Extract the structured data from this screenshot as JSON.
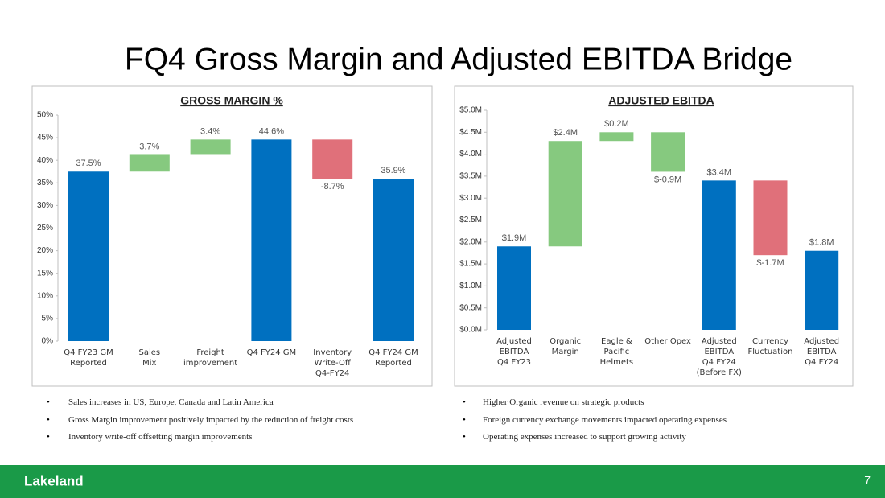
{
  "title": "FQ4 Gross Margin and Adjusted EBITDA Bridge",
  "chart_data": [
    {
      "type": "waterfall",
      "title": "GROSS MARGIN %",
      "categories": [
        "Q4 FY23 GM\nReported",
        "Sales\nMix",
        "Freight\nimprovement",
        "Q4 FY24 GM",
        "Inventory\nWrite-Off\nQ4-FY24",
        "Q4 FY24 GM\nReported"
      ],
      "values": [
        37.5,
        3.7,
        3.4,
        44.6,
        -8.7,
        35.9
      ],
      "value_labels": [
        "37.5%",
        "3.7%",
        "3.4%",
        "44.6%",
        "-8.7%",
        "35.9%"
      ],
      "totals": [
        true,
        false,
        false,
        true,
        false,
        true
      ],
      "colors": [
        "#0070c0",
        "#86c97f",
        "#86c97f",
        "#0070c0",
        "#e0707a",
        "#0070c0"
      ],
      "ylim": [
        0,
        50
      ],
      "yticks": [
        {
          "value": 0,
          "label": "0%"
        },
        {
          "value": 5,
          "label": "5%"
        },
        {
          "value": 10,
          "label": "10%"
        },
        {
          "value": 15,
          "label": "15%"
        },
        {
          "value": 20,
          "label": "20%"
        },
        {
          "value": 25,
          "label": "25%"
        },
        {
          "value": 30,
          "label": "30%"
        },
        {
          "value": 35,
          "label": "35%"
        },
        {
          "value": 40,
          "label": "40%"
        },
        {
          "value": 45,
          "label": "45%"
        },
        {
          "value": 50,
          "label": "50%"
        }
      ]
    },
    {
      "type": "waterfall",
      "title": "ADJUSTED EBITDA",
      "categories": [
        "Adjusted\nEBITDA\nQ4 FY23",
        "Organic\nMargin",
        "Eagle &\nPacific\nHelmets",
        "Other Opex",
        "Adjusted\nEBITDA\nQ4 FY24\n(Before FX)",
        "Currency\nFluctuation",
        "Adjusted\nEBITDA\nQ4 FY24"
      ],
      "values": [
        1.9,
        2.4,
        0.2,
        -0.9,
        3.4,
        -1.7,
        1.8
      ],
      "value_labels": [
        "$1.9M",
        "$2.4M",
        "$0.2M",
        "$-0.9M",
        "$3.4M",
        "$-1.7M",
        "$1.8M"
      ],
      "totals": [
        true,
        false,
        false,
        false,
        true,
        false,
        true
      ],
      "colors": [
        "#0070c0",
        "#86c97f",
        "#86c97f",
        "#86c97f",
        "#0070c0",
        "#e0707a",
        "#0070c0"
      ],
      "ylim": [
        0,
        5
      ],
      "yticks": [
        {
          "value": 0,
          "label": "$0.0M"
        },
        {
          "value": 0.5,
          "label": "$0.5M"
        },
        {
          "value": 1,
          "label": "$1.0M"
        },
        {
          "value": 1.5,
          "label": "$1.5M"
        },
        {
          "value": 2,
          "label": "$2.0M"
        },
        {
          "value": 2.5,
          "label": "$2.5M"
        },
        {
          "value": 3,
          "label": "$3.0M"
        },
        {
          "value": 3.5,
          "label": "$3.5M"
        },
        {
          "value": 4,
          "label": "$4.0M"
        },
        {
          "value": 4.5,
          "label": "$4.5M"
        },
        {
          "value": 5,
          "label": "$5.0M"
        }
      ]
    }
  ],
  "bullets_left": [
    "Sales increases in US, Europe, Canada and Latin America",
    "Gross Margin improvement positively impacted by the reduction of freight costs",
    "Inventory write-off offsetting margin improvements"
  ],
  "bullets_right": [
    "Higher Organic revenue on strategic products",
    "Foreign currency exchange movements impacted operating expenses",
    "Operating expenses increased to support growing activity"
  ],
  "footer": {
    "logo": "Lakeland",
    "page": "7"
  }
}
